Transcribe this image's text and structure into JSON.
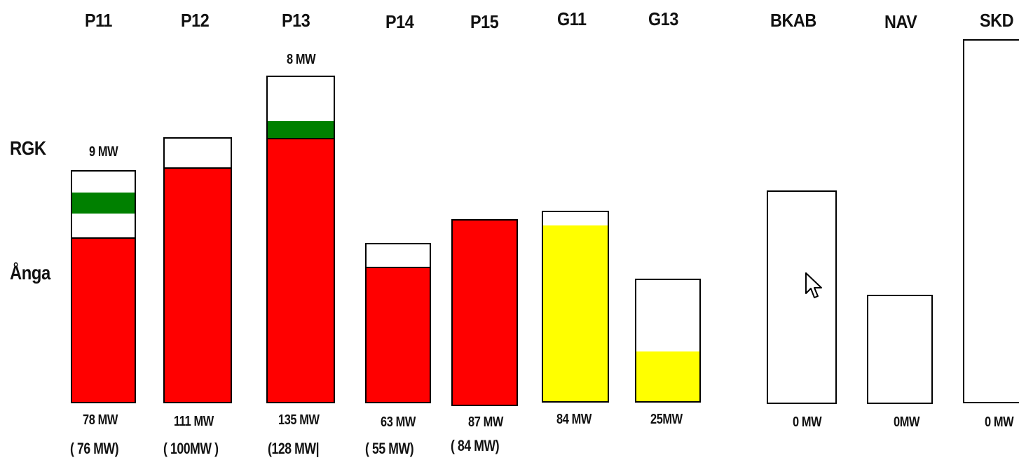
{
  "side_labels": {
    "rgk": "RGK",
    "anga": "Ånga"
  },
  "units": [
    {
      "name": "P11",
      "top_value": "9 MW",
      "value": "78 MW",
      "paren_value": "( 76 MW)",
      "colors": [
        "#ff0000",
        "#008000"
      ]
    },
    {
      "name": "P12",
      "value": "111 MW",
      "paren_value": "( 100MW )",
      "colors": [
        "#ff0000"
      ]
    },
    {
      "name": "P13",
      "top_value": "8 MW",
      "value": "135 MW",
      "paren_value": "(128 MW|",
      "colors": [
        "#ff0000",
        "#008000"
      ]
    },
    {
      "name": "P14",
      "value": "63 MW",
      "paren_value": "( 55 MW)",
      "colors": [
        "#ff0000"
      ]
    },
    {
      "name": "P15",
      "value": "87 MW",
      "paren_value": "( 84 MW)",
      "colors": [
        "#ff0000"
      ]
    },
    {
      "name": "G11",
      "value": "84 MW",
      "colors": [
        "#ffff00"
      ]
    },
    {
      "name": "G13",
      "value": "25MW",
      "colors": [
        "#ffff00"
      ]
    },
    {
      "name": "BKAB",
      "value": "0 MW",
      "colors": []
    },
    {
      "name": "NAV",
      "value": "0MW",
      "colors": []
    },
    {
      "name": "SKD",
      "value": "0 MW",
      "colors": []
    }
  ],
  "icons": {
    "cursor": "mouse-pointer-icon"
  }
}
